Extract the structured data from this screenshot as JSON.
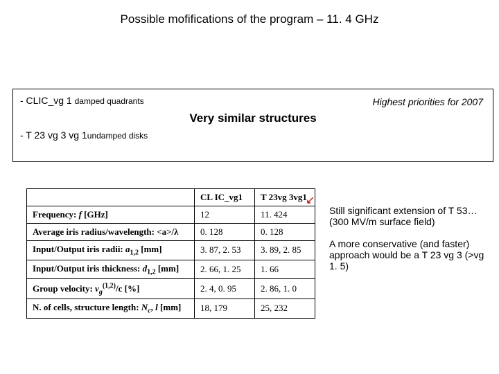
{
  "title": "Possible mofifications of the program – 11. 4 GHz",
  "box": {
    "item1_prefix": "-  CLIC_vg 1 ",
    "item1_suffix": "damped quadrants",
    "priority": "Highest priorities for 2007",
    "similar": "Very similar structures",
    "item2_prefix": "-  T 23 vg 3 vg 1",
    "item2_suffix": "undamped disks"
  },
  "table": {
    "h1": "CL IC_vg1",
    "h2": "T 23vg 3vg1",
    "rows": [
      {
        "p": "Frequency: f [GHz]",
        "c1": "12",
        "c2": "11. 424"
      },
      {
        "p": "Average iris radius/wavelength: <a>/λ",
        "c1": "0. 128",
        "c2": "0. 128"
      },
      {
        "p": "Input/Output iris radii: a₁,₂ [mm]",
        "c1": "3. 87, 2. 53",
        "c2": "3. 89, 2. 85"
      },
      {
        "p": "Input/Output iris thickness: d₁,₂ [mm]",
        "c1": "2. 66, 1. 25",
        "c2": "1. 66"
      },
      {
        "p": "Group velocity: vg(1,2)/c [%]",
        "c1": "2. 4, 0. 95",
        "c2": "2. 86, 1. 0"
      },
      {
        "p": "N. of cells, structure length: Nc, l [mm]",
        "c1": "18, 179",
        "c2": "25, 232"
      }
    ]
  },
  "notes": {
    "n1": "Still significant extension of T 53… (300 MV/m surface field)",
    "n2": "A more conservative (and faster) approach would be a T 23 vg 3 (>vg 1. 5)"
  }
}
